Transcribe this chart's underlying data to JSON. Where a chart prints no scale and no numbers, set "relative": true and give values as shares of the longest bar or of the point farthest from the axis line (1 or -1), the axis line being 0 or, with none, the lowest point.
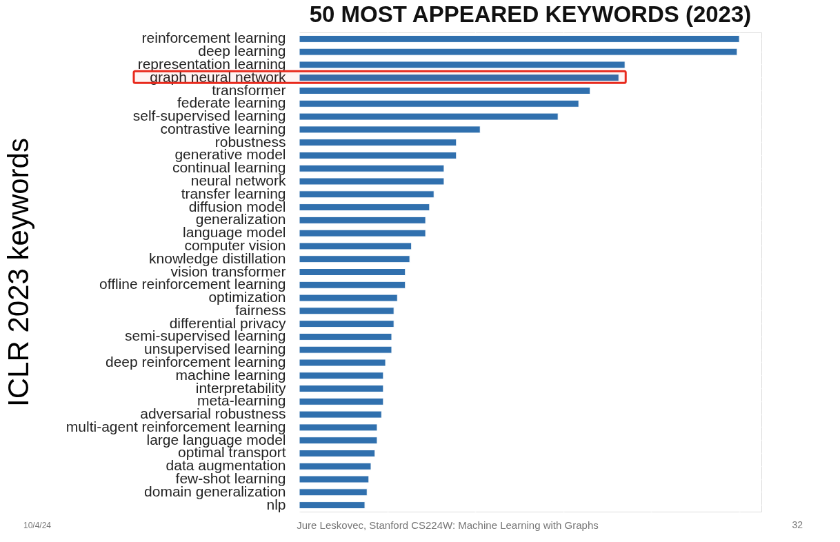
{
  "chart_data": {
    "type": "bar",
    "orientation": "horizontal",
    "relative": true,
    "title": "50 MOST APPEARED KEYWORDS (2023)",
    "ylabel": "ICLR 2023 keywords",
    "grid": true,
    "tick_labels": "y",
    "categories": [
      "reinforcement learning",
      "deep learning",
      "representation learning",
      "graph neural network",
      "transformer",
      "federate learning",
      "self-supervised learning",
      "contrastive learning",
      "robustness",
      "generative model",
      "continual learning",
      "neural network",
      "transfer learning",
      "diffusion model",
      "generalization",
      "language model",
      "computer vision",
      "knowledge distillation",
      "vision transformer",
      "offline reinforcement learning",
      "optimization",
      "fairness",
      "differential privacy",
      "semi-supervised learning",
      "unsupervised learning",
      "deep reinforcement learning",
      "machine learning",
      "interpretability",
      "meta-learning",
      "adversarial robustness",
      "multi-agent reinforcement learning",
      "large language model",
      "optimal transport",
      "data augmentation",
      "few-shot learning",
      "domain generalization",
      "nlp"
    ],
    "series": [
      {
        "color": "#3070ae",
        "values": [
          1.0,
          0.995,
          0.74,
          0.726,
          0.661,
          0.635,
          0.588,
          0.411,
          0.357,
          0.357,
          0.329,
          0.329,
          0.306,
          0.296,
          0.287,
          0.287,
          0.255,
          0.251,
          0.241,
          0.241,
          0.223,
          0.215,
          0.215,
          0.21,
          0.21,
          0.196,
          0.191,
          0.191,
          0.191,
          0.187,
          0.177,
          0.177,
          0.172,
          0.163,
          0.158,
          0.154,
          0.149
        ]
      }
    ],
    "bands": [
      {
        "axis": "y",
        "from": "graph neural network",
        "to": "graph neural network",
        "color": "#e8291c"
      }
    ],
    "annotations": [
      "Jure Leskovec, Stanford CS224W: Machine Learning with Graphs",
      "10/4/24",
      "32"
    ]
  }
}
